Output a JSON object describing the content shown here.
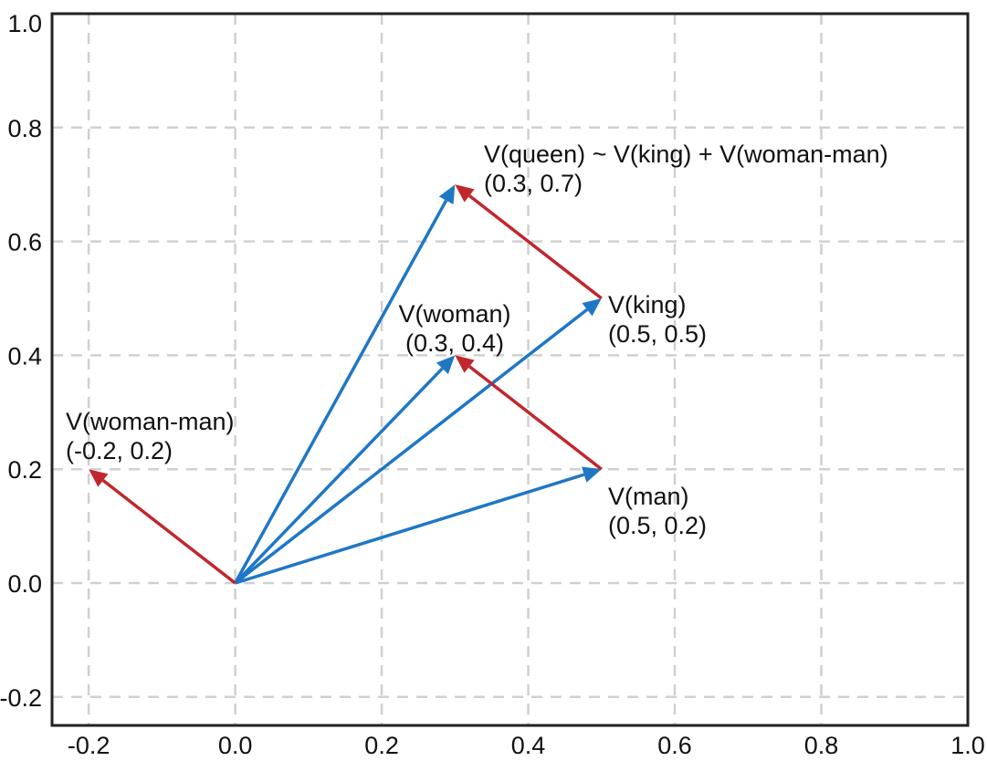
{
  "chart_data": {
    "type": "vector-plot",
    "title": "",
    "xlabel": "",
    "ylabel": "",
    "xlim": [
      -0.25,
      1.0
    ],
    "ylim": [
      -0.25,
      1.0
    ],
    "grid": true,
    "x_ticks": [
      -0.2,
      0.0,
      0.2,
      0.4,
      0.6,
      0.8,
      1.0
    ],
    "y_ticks": [
      -0.2,
      0.0,
      0.2,
      0.4,
      0.6,
      0.8,
      1.0
    ],
    "x_tick_labels": [
      "-0.2",
      "0.0",
      "0.2",
      "0.4",
      "0.6",
      "0.8",
      "1.0"
    ],
    "y_tick_labels": [
      "-0.2",
      "0.0",
      "0.2",
      "0.4",
      "0.6",
      "0.8",
      "1.0"
    ],
    "colors": {
      "blue": "#1f77c4",
      "red": "#c0272d"
    },
    "vectors": [
      {
        "id": "man",
        "from": [
          0.0,
          0.0
        ],
        "to": [
          0.5,
          0.2
        ],
        "color": "blue"
      },
      {
        "id": "woman",
        "from": [
          0.0,
          0.0
        ],
        "to": [
          0.3,
          0.4
        ],
        "color": "blue"
      },
      {
        "id": "king",
        "from": [
          0.0,
          0.0
        ],
        "to": [
          0.5,
          0.5
        ],
        "color": "blue"
      },
      {
        "id": "queen",
        "from": [
          0.0,
          0.0
        ],
        "to": [
          0.3,
          0.7
        ],
        "color": "blue"
      },
      {
        "id": "woman-man",
        "from": [
          0.0,
          0.0
        ],
        "to": [
          -0.2,
          0.2
        ],
        "color": "red"
      },
      {
        "id": "man-to-woman",
        "from": [
          0.5,
          0.2
        ],
        "to": [
          0.3,
          0.4
        ],
        "color": "red"
      },
      {
        "id": "king-to-queen",
        "from": [
          0.5,
          0.5
        ],
        "to": [
          0.3,
          0.7
        ],
        "color": "red"
      }
    ],
    "annotations": [
      {
        "id": "queen",
        "lines": [
          "V(queen) ~ V(king) + V(woman-man)",
          "(0.3, 0.7)"
        ]
      },
      {
        "id": "king",
        "lines": [
          "V(king)",
          "(0.5, 0.5)"
        ]
      },
      {
        "id": "woman",
        "lines": [
          "V(woman)",
          "(0.3, 0.4)"
        ]
      },
      {
        "id": "woman-man",
        "lines": [
          "V(woman-man)",
          "(-0.2, 0.2)"
        ]
      },
      {
        "id": "man",
        "lines": [
          "V(man)",
          "(0.5, 0.2)"
        ]
      }
    ]
  }
}
